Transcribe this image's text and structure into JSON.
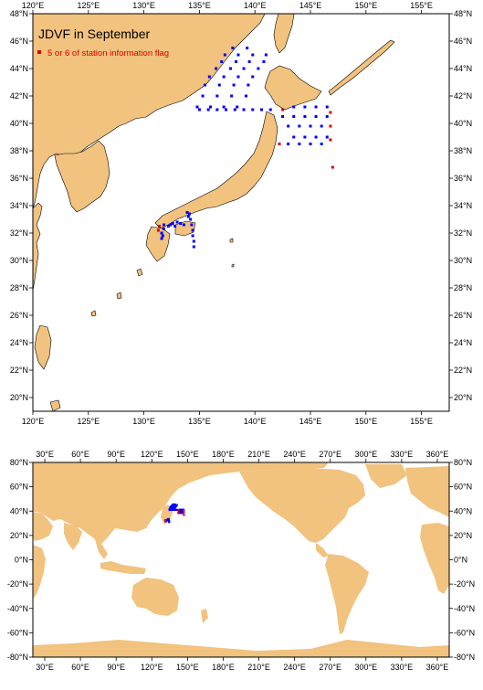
{
  "title": "JDVF in September",
  "legend_label": "5 or 6 of station information flag",
  "colors": {
    "land": "#f2c27f",
    "ocean": "#ffffff",
    "station_ok": "#0000ff",
    "station_flag": "#e00000",
    "frame": "#000000"
  },
  "top_map": {
    "lon_labels": [
      "120°E",
      "125°E",
      "130°E",
      "135°E",
      "140°E",
      "145°E",
      "150°E",
      "155°E"
    ],
    "lat_labels": [
      "48°N",
      "46°N",
      "44°N",
      "42°N",
      "40°N",
      "38°N",
      "36°N",
      "34°N",
      "32°N",
      "30°N",
      "28°N",
      "26°N",
      "24°N",
      "22°N",
      "20°N"
    ],
    "lon_range": [
      120,
      157.5
    ],
    "lat_range": [
      19,
      48
    ]
  },
  "bottom_map": {
    "lon_labels": [
      "30°E",
      "60°E",
      "90°E",
      "120°E",
      "150°E",
      "180°E",
      "210°E",
      "240°E",
      "270°E",
      "300°E",
      "330°E",
      "360°E"
    ],
    "lat_labels": [
      "80°N",
      "60°N",
      "40°N",
      "20°N",
      "0°N",
      "-20°N",
      "-40°N",
      "-60°N",
      "-80°N"
    ],
    "lon_range": [
      20,
      370
    ],
    "lat_range": [
      -80,
      80
    ]
  },
  "stations_blue": [
    [
      138,
      45.5
    ],
    [
      139.3,
      45.5
    ],
    [
      137.3,
      45
    ],
    [
      138.5,
      45
    ],
    [
      139.8,
      45
    ],
    [
      141,
      45
    ],
    [
      137,
      44.5
    ],
    [
      138.3,
      44.5
    ],
    [
      139.5,
      44.5
    ],
    [
      140.8,
      44.5
    ],
    [
      136.5,
      44
    ],
    [
      137.8,
      44
    ],
    [
      139,
      44
    ],
    [
      140.3,
      44
    ],
    [
      135.9,
      43.4
    ],
    [
      137.2,
      43.4
    ],
    [
      138.5,
      43.4
    ],
    [
      139.8,
      43.4
    ],
    [
      135.5,
      42.8
    ],
    [
      136.8,
      42.8
    ],
    [
      138.1,
      42.8
    ],
    [
      139.4,
      42.8
    ],
    [
      135.3,
      42
    ],
    [
      136.6,
      42
    ],
    [
      137.9,
      42
    ],
    [
      139.2,
      42
    ],
    [
      134.8,
      41.2
    ],
    [
      136,
      41.2
    ],
    [
      137.2,
      41.2
    ],
    [
      138.4,
      41.2
    ],
    [
      135,
      41
    ],
    [
      135.8,
      41
    ],
    [
      136.6,
      41
    ],
    [
      137.4,
      41
    ],
    [
      138.2,
      41
    ],
    [
      139,
      41
    ],
    [
      139.8,
      41
    ],
    [
      140.6,
      41
    ],
    [
      141.4,
      41
    ],
    [
      143.5,
      41.2
    ],
    [
      144.5,
      41.2
    ],
    [
      145.5,
      41.2
    ],
    [
      146.5,
      41.2
    ],
    [
      142.5,
      40.5
    ],
    [
      143.5,
      40.5
    ],
    [
      144.5,
      40.5
    ],
    [
      145.5,
      40.5
    ],
    [
      146.5,
      40.5
    ],
    [
      143,
      39.8
    ],
    [
      144,
      39.8
    ],
    [
      145,
      39.8
    ],
    [
      146,
      39.8
    ],
    [
      143.5,
      39
    ],
    [
      144.5,
      39
    ],
    [
      145.5,
      39
    ],
    [
      146.5,
      39
    ],
    [
      143,
      38.5
    ],
    [
      144,
      38.5
    ],
    [
      145,
      38.5
    ],
    [
      146,
      38.5
    ],
    [
      131.8,
      32.3
    ],
    [
      132.2,
      32.5
    ],
    [
      132.6,
      32.7
    ],
    [
      133,
      32.8
    ],
    [
      133.3,
      32.7
    ],
    [
      133.6,
      32.6
    ],
    [
      131.6,
      32
    ],
    [
      131.7,
      31.8
    ],
    [
      131.6,
      31.6
    ],
    [
      131.8,
      32.6
    ],
    [
      132.4,
      32.6
    ],
    [
      132.8,
      32.5
    ],
    [
      134,
      33.2
    ],
    [
      134.2,
      33
    ],
    [
      134.3,
      32.6
    ],
    [
      134.4,
      32.2
    ],
    [
      134.4,
      31.8
    ],
    [
      134.5,
      31.4
    ],
    [
      134.5,
      31
    ],
    [
      133.9,
      33.5
    ],
    [
      134.1,
      33.4
    ]
  ],
  "stations_red": [
    [
      146.8,
      40.8
    ],
    [
      146.8,
      39.8
    ],
    [
      146.8,
      38.8
    ],
    [
      147,
      36.8
    ],
    [
      142.2,
      38.5
    ],
    [
      142.5,
      41
    ],
    [
      131.4,
      32.5
    ],
    [
      131.3,
      32.2
    ]
  ]
}
